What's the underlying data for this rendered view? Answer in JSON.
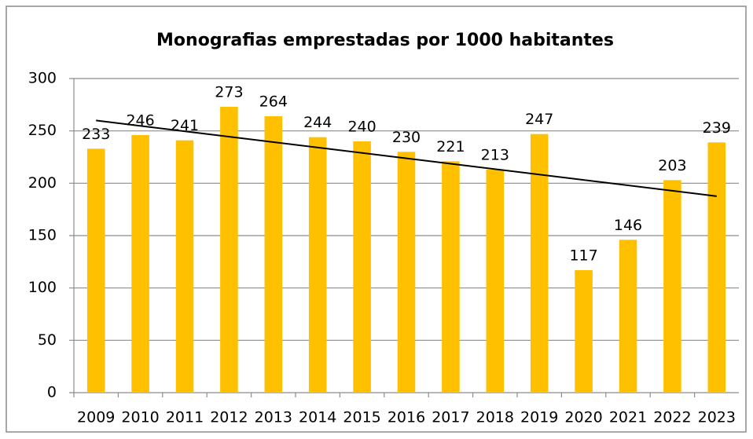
{
  "chart_data": {
    "type": "bar",
    "title": "Monografias emprestadas por 1000 habitantes",
    "categories": [
      "2009",
      "2010",
      "2011",
      "2012",
      "2013",
      "2014",
      "2015",
      "2016",
      "2017",
      "2018",
      "2019",
      "2020",
      "2021",
      "2022",
      "2023"
    ],
    "values": [
      233,
      246,
      241,
      273,
      264,
      244,
      240,
      230,
      221,
      213,
      247,
      117,
      146,
      203,
      239
    ],
    "color": "#ffc000",
    "ylim": [
      0,
      300
    ],
    "yticks": [
      0,
      50,
      100,
      150,
      200,
      250,
      300
    ],
    "grid": true,
    "trendline": "linear"
  }
}
